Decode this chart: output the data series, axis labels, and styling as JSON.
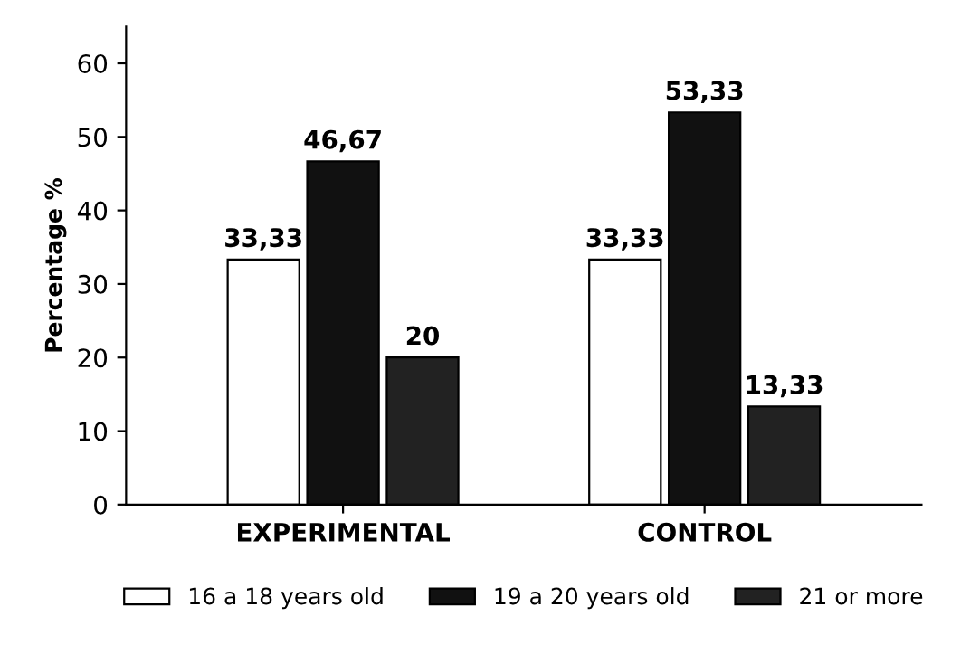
{
  "chart_data": {
    "type": "bar",
    "ylabel": "Percentage %",
    "categories": [
      "EXPERIMENTAL",
      "CONTROL"
    ],
    "series": [
      {
        "name": "16 a 18 years old",
        "color": "#ffffff",
        "values": [
          33.33,
          33.33
        ],
        "value_labels": [
          "33,33",
          "33,33"
        ]
      },
      {
        "name": "19 a 20 years old",
        "color": "#111111",
        "values": [
          46.67,
          53.33
        ],
        "value_labels": [
          "46,67",
          "53,33"
        ]
      },
      {
        "name": "21 or more",
        "color": "#222222",
        "values": [
          20,
          13.33
        ],
        "value_labels": [
          "20",
          "13,33"
        ]
      }
    ],
    "ylim": [
      0,
      65
    ],
    "yticks": [
      0,
      10,
      20,
      30,
      40,
      50,
      60
    ],
    "grid": false,
    "legend": "bottom"
  }
}
